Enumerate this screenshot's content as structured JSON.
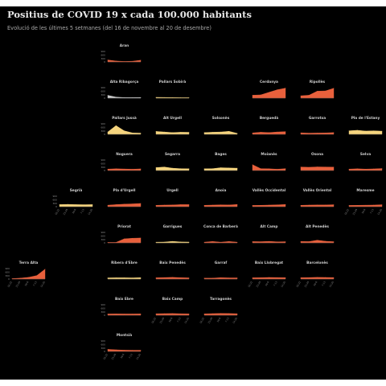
{
  "chart_data": {
    "type": "area",
    "title": "Positius de COVID 19 x cada 100.000 habitants",
    "subtitle": "Evolució de les últimes 5 setmanes (del 16 de novembre al 20 de desembre)",
    "x": [
      "16-22",
      "23-29",
      "30-6",
      "7-13",
      "14-20"
    ],
    "ylim": [
      0,
      900
    ],
    "yticks": [
      0,
      300,
      600,
      900
    ],
    "colors": {
      "high": "#e8603c",
      "low": "#f5d47e",
      "neutral": "#cccccc"
    },
    "series": [
      {
        "name": "Aran",
        "row": 0,
        "col": 2,
        "color": "high",
        "values": [
          170,
          80,
          40,
          60,
          150
        ]
      },
      {
        "name": "Alta Ribagorça",
        "row": 1,
        "col": 2,
        "color": "neutral",
        "values": [
          240,
          90,
          50,
          50,
          60
        ]
      },
      {
        "name": "Pallars Sobirà",
        "row": 1,
        "col": 3,
        "color": "low",
        "values": [
          70,
          60,
          50,
          40,
          40
        ]
      },
      {
        "name": "Cerdanya",
        "row": 1,
        "col": 5,
        "color": "high",
        "values": [
          250,
          280,
          500,
          720,
          860
        ]
      },
      {
        "name": "Ripollès",
        "row": 1,
        "col": 6,
        "color": "high",
        "values": [
          200,
          250,
          600,
          620,
          850
        ]
      },
      {
        "name": "Pallars Jussà",
        "row": 2,
        "col": 2,
        "color": "low",
        "values": [
          200,
          750,
          300,
          120,
          100
        ]
      },
      {
        "name": "Alt Urgell",
        "row": 2,
        "col": 3,
        "color": "low",
        "values": [
          250,
          200,
          150,
          180,
          170
        ]
      },
      {
        "name": "Solsonès",
        "row": 2,
        "col": 4,
        "color": "low",
        "values": [
          150,
          180,
          200,
          260,
          80
        ]
      },
      {
        "name": "Berguedà",
        "row": 2,
        "col": 5,
        "color": "high",
        "values": [
          120,
          180,
          150,
          200,
          230
        ]
      },
      {
        "name": "Garrotxa",
        "row": 2,
        "col": 6,
        "color": "high",
        "values": [
          130,
          100,
          110,
          120,
          150
        ]
      },
      {
        "name": "Pla de l'Estany",
        "row": 2,
        "col": 7,
        "color": "low",
        "values": [
          300,
          350,
          280,
          300,
          270
        ]
      },
      {
        "name": "Noguera",
        "row": 3,
        "col": 2,
        "color": "high",
        "values": [
          120,
          150,
          130,
          110,
          140
        ]
      },
      {
        "name": "Segarra",
        "row": 3,
        "col": 3,
        "color": "low",
        "values": [
          250,
          300,
          200,
          160,
          150
        ]
      },
      {
        "name": "Bages",
        "row": 3,
        "col": 4,
        "color": "low",
        "values": [
          150,
          160,
          240,
          220,
          200
        ]
      },
      {
        "name": "Moianès",
        "row": 3,
        "col": 5,
        "color": "high",
        "values": [
          500,
          160,
          150,
          110,
          160
        ]
      },
      {
        "name": "Osona",
        "row": 3,
        "col": 6,
        "color": "high",
        "values": [
          300,
          280,
          310,
          300,
          290
        ]
      },
      {
        "name": "Selva",
        "row": 3,
        "col": 7,
        "color": "high",
        "values": [
          120,
          150,
          120,
          140,
          170
        ]
      },
      {
        "name": "Segrià",
        "row": 4,
        "col": 1,
        "color": "low",
        "values": [
          180,
          200,
          180,
          170,
          180
        ]
      },
      {
        "name": "Pla d'Urgell",
        "row": 4,
        "col": 2,
        "color": "high",
        "values": [
          130,
          180,
          220,
          240,
          280
        ]
      },
      {
        "name": "Urgell",
        "row": 4,
        "col": 3,
        "color": "high",
        "values": [
          120,
          140,
          150,
          180,
          180
        ]
      },
      {
        "name": "Anoia",
        "row": 4,
        "col": 4,
        "color": "high",
        "values": [
          120,
          140,
          160,
          150,
          190
        ]
      },
      {
        "name": "Vallès Occidental",
        "row": 4,
        "col": 5,
        "color": "high",
        "values": [
          110,
          120,
          140,
          160,
          190
        ]
      },
      {
        "name": "Vallès Oriental",
        "row": 4,
        "col": 6,
        "color": "high",
        "values": [
          120,
          140,
          150,
          150,
          170
        ]
      },
      {
        "name": "Maresme",
        "row": 4,
        "col": 7,
        "color": "high",
        "values": [
          110,
          120,
          130,
          140,
          170
        ]
      },
      {
        "name": "Priorat",
        "row": 5,
        "col": 2,
        "color": "high",
        "values": [
          40,
          40,
          350,
          400,
          420
        ]
      },
      {
        "name": "Garrigues",
        "row": 5,
        "col": 3,
        "color": "low",
        "values": [
          60,
          70,
          130,
          80,
          70
        ]
      },
      {
        "name": "Conca de Barberà",
        "row": 5,
        "col": 4,
        "color": "high",
        "values": [
          60,
          120,
          60,
          120,
          60
        ]
      },
      {
        "name": "Alt Camp",
        "row": 5,
        "col": 5,
        "color": "high",
        "values": [
          110,
          100,
          130,
          90,
          100
        ]
      },
      {
        "name": "Alt Penedès",
        "row": 5,
        "col": 6,
        "color": "high",
        "values": [
          120,
          110,
          230,
          140,
          100
        ]
      },
      {
        "name": "Terra Alta",
        "row": 6,
        "col": 0,
        "color": "high",
        "values": [
          40,
          80,
          150,
          300,
          850
        ]
      },
      {
        "name": "Ribera d'Ebre",
        "row": 6,
        "col": 2,
        "color": "low",
        "values": [
          100,
          110,
          110,
          100,
          120
        ]
      },
      {
        "name": "Baix Penedès",
        "row": 6,
        "col": 3,
        "color": "high",
        "values": [
          110,
          130,
          150,
          120,
          100
        ]
      },
      {
        "name": "Garraf",
        "row": 6,
        "col": 4,
        "color": "high",
        "values": [
          80,
          80,
          120,
          100,
          100
        ]
      },
      {
        "name": "Baix Llobregat",
        "row": 6,
        "col": 5,
        "color": "high",
        "values": [
          110,
          120,
          140,
          130,
          120
        ]
      },
      {
        "name": "Barcelonès",
        "row": 6,
        "col": 6,
        "color": "high",
        "values": [
          120,
          130,
          150,
          140,
          130
        ]
      },
      {
        "name": "Baix Ebre",
        "row": 7,
        "col": 2,
        "color": "high",
        "values": [
          110,
          120,
          110,
          110,
          120
        ]
      },
      {
        "name": "Baix Camp",
        "row": 7,
        "col": 3,
        "color": "high",
        "values": [
          130,
          140,
          150,
          130,
          120
        ]
      },
      {
        "name": "Tarragonès",
        "row": 7,
        "col": 4,
        "color": "high",
        "values": [
          120,
          140,
          160,
          150,
          130
        ]
      },
      {
        "name": "Montsià",
        "row": 8,
        "col": 2,
        "color": "high",
        "values": [
          180,
          140,
          110,
          100,
          100
        ]
      }
    ]
  }
}
